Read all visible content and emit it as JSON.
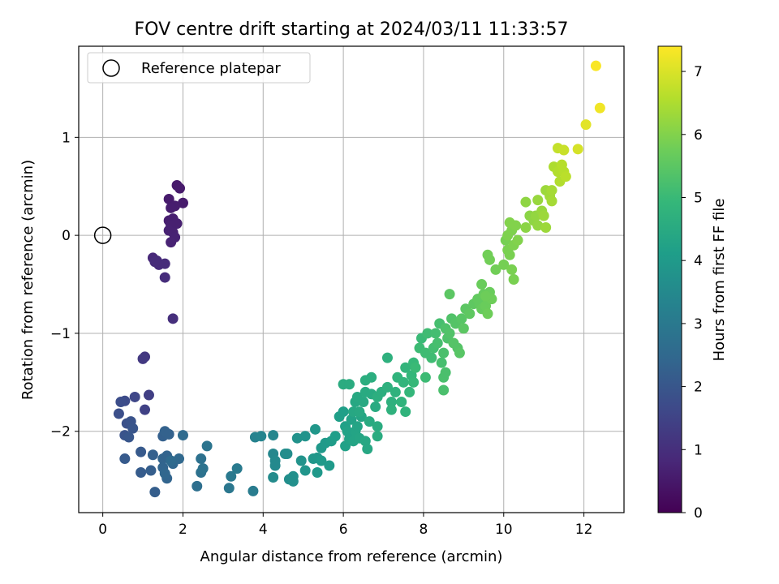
{
  "chart_data": {
    "type": "scatter",
    "title": "FOV centre drift starting at 2024/03/11 11:33:57",
    "xlabel": "Angular distance from reference (arcmin)",
    "ylabel": "Rotation from reference (arcmin)",
    "xlim": [
      -0.6,
      13.0
    ],
    "ylim": [
      -2.83,
      1.93
    ],
    "xticks": [
      0,
      2,
      4,
      6,
      8,
      10,
      12
    ],
    "yticks": [
      -2,
      -1,
      0,
      1
    ],
    "xtick_labels": [
      "0",
      "2",
      "4",
      "6",
      "8",
      "10",
      "12"
    ],
    "ytick_labels": [
      "−2",
      "−1",
      "0",
      "1"
    ],
    "grid": true,
    "legend": {
      "position": "top-left",
      "entries": [
        "Reference platepar"
      ]
    },
    "reference_point": {
      "label": "Reference platepar",
      "x": 0,
      "y": 0,
      "marker": "open-circle"
    },
    "colorbar": {
      "label": "Hours from first FF file",
      "range": [
        0,
        7.4
      ],
      "ticks": [
        0,
        1,
        2,
        3,
        4,
        5,
        6,
        7
      ],
      "tick_labels": [
        "0",
        "1",
        "2",
        "3",
        "4",
        "5",
        "6",
        "7"
      ],
      "colormap": "viridis"
    },
    "points": [
      [
        1.85,
        0.51,
        0.5
      ],
      [
        1.92,
        0.48,
        0.52
      ],
      [
        2.0,
        0.33,
        0.55
      ],
      [
        1.65,
        0.37,
        0.55
      ],
      [
        1.8,
        0.3,
        0.58
      ],
      [
        1.7,
        0.28,
        0.6
      ],
      [
        1.65,
        0.15,
        0.62
      ],
      [
        1.75,
        0.17,
        0.63
      ],
      [
        1.85,
        0.12,
        0.65
      ],
      [
        1.7,
        0.1,
        0.65
      ],
      [
        1.75,
        0.03,
        0.67
      ],
      [
        1.65,
        0.05,
        0.68
      ],
      [
        1.8,
        -0.02,
        0.7
      ],
      [
        1.7,
        -0.07,
        0.72
      ],
      [
        1.25,
        -0.23,
        0.85
      ],
      [
        1.35,
        -0.26,
        0.88
      ],
      [
        1.4,
        -0.3,
        0.9
      ],
      [
        1.55,
        -0.29,
        0.92
      ],
      [
        1.3,
        -0.27,
        0.93
      ],
      [
        1.55,
        -0.43,
        0.95
      ],
      [
        1.75,
        -0.85,
        1.0
      ],
      [
        1.05,
        -1.24,
        1.2
      ],
      [
        1.0,
        -1.26,
        1.25
      ],
      [
        1.15,
        -1.63,
        1.4
      ],
      [
        1.05,
        -1.78,
        1.45
      ],
      [
        0.8,
        -1.65,
        1.6
      ],
      [
        0.55,
        -1.69,
        1.7
      ],
      [
        0.45,
        -1.7,
        1.75
      ],
      [
        0.4,
        -1.82,
        1.8
      ],
      [
        0.6,
        -1.92,
        1.85
      ],
      [
        0.7,
        -1.9,
        1.9
      ],
      [
        0.55,
        -2.04,
        1.9
      ],
      [
        0.75,
        -1.97,
        1.95
      ],
      [
        0.65,
        -2.06,
        2.0
      ],
      [
        0.55,
        -2.28,
        2.1
      ],
      [
        0.95,
        -2.21,
        2.1
      ],
      [
        0.95,
        -2.42,
        2.15
      ],
      [
        1.2,
        -2.4,
        2.2
      ],
      [
        1.3,
        -2.62,
        2.2
      ],
      [
        1.25,
        -2.24,
        2.25
      ],
      [
        1.5,
        -2.05,
        2.25
      ],
      [
        1.55,
        -2.0,
        2.3
      ],
      [
        1.65,
        -2.03,
        2.3
      ],
      [
        1.5,
        -2.28,
        2.35
      ],
      [
        1.6,
        -2.25,
        2.35
      ],
      [
        1.5,
        -2.37,
        2.4
      ],
      [
        1.6,
        -2.48,
        2.4
      ],
      [
        1.55,
        -2.43,
        2.45
      ],
      [
        1.75,
        -2.33,
        2.45
      ],
      [
        1.9,
        -2.28,
        2.5
      ],
      [
        2.0,
        -2.04,
        2.55
      ],
      [
        1.7,
        -2.3,
        2.55
      ],
      [
        2.35,
        -2.56,
        2.7
      ],
      [
        2.45,
        -2.42,
        2.75
      ],
      [
        2.45,
        -2.28,
        2.75
      ],
      [
        2.5,
        -2.38,
        2.8
      ],
      [
        2.6,
        -2.15,
        2.85
      ],
      [
        3.15,
        -2.58,
        2.95
      ],
      [
        3.2,
        -2.46,
        3.0
      ],
      [
        3.35,
        -2.38,
        3.05
      ],
      [
        3.75,
        -2.61,
        3.1
      ],
      [
        3.8,
        -2.06,
        3.3
      ],
      [
        3.95,
        -2.05,
        3.35
      ],
      [
        4.25,
        -2.04,
        3.4
      ],
      [
        4.25,
        -2.23,
        3.45
      ],
      [
        4.3,
        -2.3,
        3.5
      ],
      [
        4.3,
        -2.35,
        3.5
      ],
      [
        4.25,
        -2.47,
        3.55
      ],
      [
        4.55,
        -2.23,
        3.6
      ],
      [
        4.6,
        -2.23,
        3.6
      ],
      [
        4.65,
        -2.49,
        3.65
      ],
      [
        4.75,
        -2.46,
        3.7
      ],
      [
        4.75,
        -2.51,
        3.7
      ],
      [
        4.85,
        -2.07,
        3.75
      ],
      [
        4.95,
        -2.3,
        3.8
      ],
      [
        5.05,
        -2.05,
        3.8
      ],
      [
        5.05,
        -2.4,
        3.85
      ],
      [
        5.25,
        -2.28,
        3.9
      ],
      [
        5.3,
        -1.98,
        3.9
      ],
      [
        5.35,
        -2.27,
        3.9
      ],
      [
        5.35,
        -2.42,
        3.95
      ],
      [
        5.45,
        -2.17,
        3.95
      ],
      [
        5.45,
        -2.3,
        4.0
      ],
      [
        5.55,
        -2.12,
        4.0
      ],
      [
        5.65,
        -2.35,
        4.0
      ],
      [
        5.7,
        -2.1,
        4.05
      ],
      [
        5.8,
        -2.05,
        4.1
      ],
      [
        5.9,
        -1.85,
        4.15
      ],
      [
        6.0,
        -1.8,
        4.15
      ],
      [
        6.05,
        -1.95,
        4.2
      ],
      [
        6.05,
        -2.15,
        4.2
      ],
      [
        6.1,
        -2.0,
        4.25
      ],
      [
        6.15,
        -2.08,
        4.25
      ],
      [
        6.2,
        -1.88,
        4.25
      ],
      [
        6.25,
        -2.1,
        4.3
      ],
      [
        6.3,
        -2.0,
        4.3
      ],
      [
        6.35,
        -1.95,
        4.3
      ],
      [
        6.4,
        -2.07,
        4.35
      ],
      [
        6.45,
        -1.85,
        4.35
      ],
      [
        6.55,
        -2.1,
        4.4
      ],
      [
        6.6,
        -2.18,
        4.4
      ],
      [
        6.3,
        -1.7,
        4.4
      ],
      [
        6.25,
        -1.8,
        4.4
      ],
      [
        6.35,
        -1.65,
        4.45
      ],
      [
        6.4,
        -1.8,
        4.45
      ],
      [
        6.5,
        -1.7,
        4.45
      ],
      [
        6.55,
        -1.6,
        4.5
      ],
      [
        6.65,
        -1.9,
        4.5
      ],
      [
        6.7,
        -1.62,
        4.5
      ],
      [
        6.8,
        -1.75,
        4.5
      ],
      [
        6.85,
        -1.95,
        4.55
      ],
      [
        6.85,
        -2.05,
        4.55
      ],
      [
        6.0,
        -1.52,
        4.55
      ],
      [
        6.15,
        -1.52,
        4.55
      ],
      [
        6.55,
        -1.48,
        4.6
      ],
      [
        6.7,
        -1.45,
        4.6
      ],
      [
        6.85,
        -1.65,
        4.65
      ],
      [
        6.95,
        -1.6,
        4.65
      ],
      [
        7.1,
        -1.55,
        4.7
      ],
      [
        7.1,
        -1.25,
        4.7
      ],
      [
        7.2,
        -1.7,
        4.7
      ],
      [
        7.2,
        -1.78,
        4.75
      ],
      [
        7.3,
        -1.6,
        4.75
      ],
      [
        7.35,
        -1.45,
        4.8
      ],
      [
        7.45,
        -1.7,
        4.8
      ],
      [
        7.55,
        -1.8,
        4.8
      ],
      [
        7.5,
        -1.5,
        4.85
      ],
      [
        7.55,
        -1.35,
        4.85
      ],
      [
        7.65,
        -1.6,
        4.9
      ],
      [
        7.7,
        -1.43,
        4.9
      ],
      [
        7.75,
        -1.5,
        4.95
      ],
      [
        7.75,
        -1.3,
        4.95
      ],
      [
        7.8,
        -1.35,
        5.0
      ],
      [
        7.95,
        -1.05,
        5.0
      ],
      [
        7.9,
        -1.15,
        5.05
      ],
      [
        8.05,
        -1.45,
        5.05
      ],
      [
        8.05,
        -1.2,
        5.1
      ],
      [
        8.1,
        -1.0,
        5.1
      ],
      [
        8.2,
        -1.25,
        5.1
      ],
      [
        8.25,
        -1.15,
        5.15
      ],
      [
        8.3,
        -1.0,
        5.15
      ],
      [
        8.35,
        -1.1,
        5.2
      ],
      [
        8.4,
        -0.9,
        5.2
      ],
      [
        8.45,
        -1.3,
        5.2
      ],
      [
        8.5,
        -1.2,
        5.25
      ],
      [
        8.5,
        -1.45,
        5.25
      ],
      [
        8.55,
        -1.4,
        5.25
      ],
      [
        8.5,
        -1.58,
        5.25
      ],
      [
        8.55,
        -0.95,
        5.3
      ],
      [
        8.6,
        -1.05,
        5.3
      ],
      [
        8.65,
        -1.0,
        5.35
      ],
      [
        8.7,
        -0.85,
        5.35
      ],
      [
        8.75,
        -1.1,
        5.4
      ],
      [
        8.8,
        -0.9,
        5.4
      ],
      [
        8.85,
        -1.15,
        5.4
      ],
      [
        8.9,
        -1.2,
        5.45
      ],
      [
        8.95,
        -0.85,
        5.45
      ],
      [
        9.0,
        -0.95,
        5.5
      ],
      [
        9.05,
        -0.75,
        5.5
      ],
      [
        8.65,
        -0.6,
        5.5
      ],
      [
        9.15,
        -0.8,
        5.55
      ],
      [
        9.25,
        -0.7,
        5.55
      ],
      [
        9.35,
        -0.65,
        5.6
      ],
      [
        9.4,
        -0.7,
        5.6
      ],
      [
        9.45,
        -0.75,
        5.65
      ],
      [
        9.5,
        -0.6,
        5.65
      ],
      [
        9.55,
        -0.72,
        5.7
      ],
      [
        9.6,
        -0.65,
        5.7
      ],
      [
        9.45,
        -0.5,
        5.7
      ],
      [
        9.65,
        -0.58,
        5.7
      ],
      [
        9.7,
        -0.65,
        5.75
      ],
      [
        9.55,
        -0.62,
        5.75
      ],
      [
        9.6,
        -0.8,
        5.75
      ],
      [
        9.8,
        -0.35,
        5.8
      ],
      [
        9.6,
        -0.2,
        5.8
      ],
      [
        9.65,
        -0.25,
        5.8
      ],
      [
        10.0,
        -0.3,
        5.85
      ],
      [
        10.05,
        -0.05,
        5.85
      ],
      [
        10.1,
        -0.15,
        5.9
      ],
      [
        10.15,
        -0.2,
        5.9
      ],
      [
        10.2,
        -0.35,
        5.9
      ],
      [
        10.25,
        -0.45,
        5.9
      ],
      [
        10.1,
        0.0,
        5.95
      ],
      [
        10.2,
        0.05,
        5.95
      ],
      [
        10.25,
        -0.1,
        5.95
      ],
      [
        10.3,
        0.1,
        6.0
      ],
      [
        10.35,
        -0.05,
        6.0
      ],
      [
        10.15,
        0.13,
        6.0
      ],
      [
        10.55,
        0.08,
        6.1
      ],
      [
        10.65,
        0.2,
        6.1
      ],
      [
        10.55,
        0.34,
        6.15
      ],
      [
        10.75,
        0.15,
        6.15
      ],
      [
        10.85,
        0.1,
        6.2
      ],
      [
        10.8,
        0.2,
        6.2
      ],
      [
        10.95,
        0.25,
        6.25
      ],
      [
        10.85,
        0.36,
        6.25
      ],
      [
        11.0,
        0.2,
        6.3
      ],
      [
        11.05,
        0.46,
        6.3
      ],
      [
        11.05,
        0.08,
        6.3
      ],
      [
        11.15,
        0.4,
        6.35
      ],
      [
        11.2,
        0.46,
        6.4
      ],
      [
        11.2,
        0.35,
        6.4
      ],
      [
        11.25,
        0.7,
        6.5
      ],
      [
        11.35,
        0.65,
        6.55
      ],
      [
        11.4,
        0.55,
        6.55
      ],
      [
        11.45,
        0.72,
        6.6
      ],
      [
        11.5,
        0.65,
        6.6
      ],
      [
        11.55,
        0.6,
        6.65
      ],
      [
        11.35,
        0.89,
        6.75
      ],
      [
        11.5,
        0.87,
        6.8
      ],
      [
        11.85,
        0.88,
        6.95
      ],
      [
        12.05,
        1.13,
        7.1
      ],
      [
        12.4,
        1.3,
        7.25
      ],
      [
        12.3,
        1.73,
        7.35
      ]
    ]
  }
}
